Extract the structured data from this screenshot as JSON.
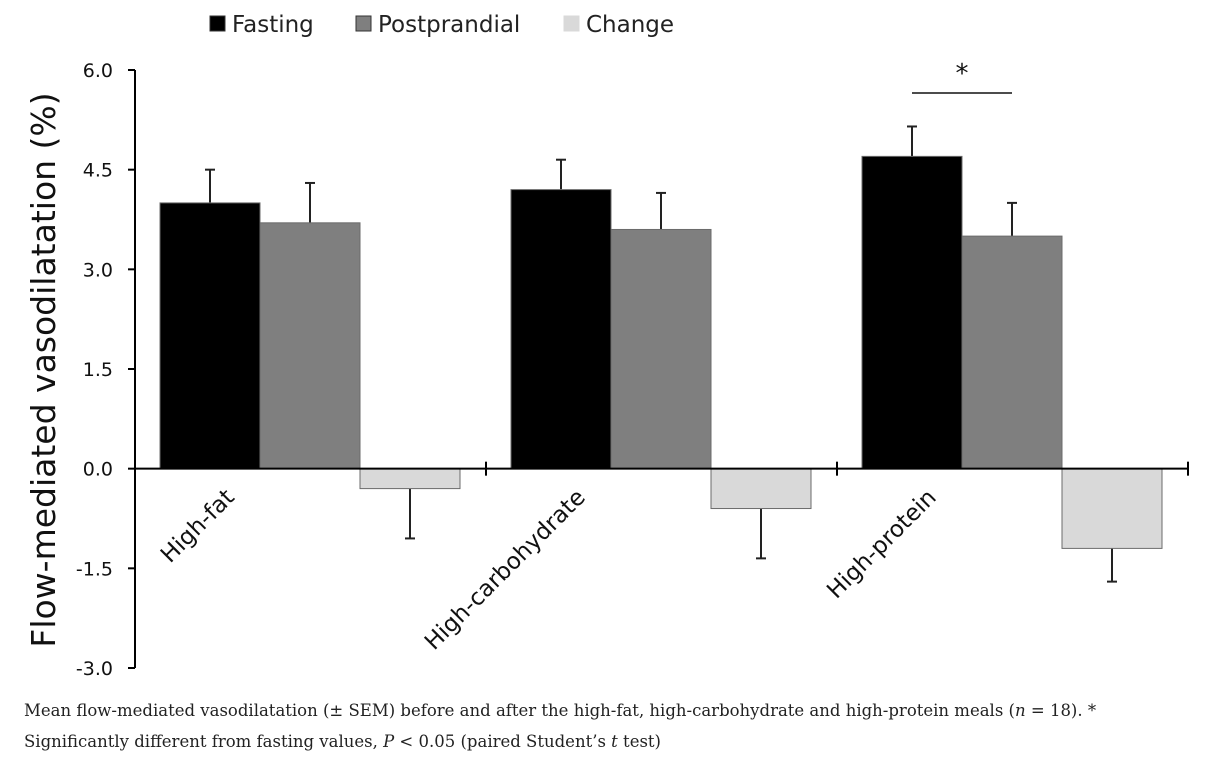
{
  "chart_data": {
    "type": "bar",
    "categories": [
      "High-fat",
      "High-carbohydrate",
      "High-protein"
    ],
    "series": [
      {
        "name": "Fasting",
        "values": [
          4.0,
          4.2,
          4.7
        ],
        "errors": [
          0.5,
          0.45,
          0.45
        ],
        "color": "#000000"
      },
      {
        "name": "Postprandial",
        "values": [
          3.7,
          3.6,
          3.5
        ],
        "errors": [
          0.6,
          0.55,
          0.5
        ],
        "color": "#7f7f7f"
      },
      {
        "name": "Change",
        "values": [
          -0.3,
          -0.6,
          -1.2
        ],
        "errors": [
          0.75,
          0.75,
          0.5
        ],
        "color": "#d9d9d9"
      }
    ],
    "ylabel": "Flow-mediated vasodilatation (%)",
    "xlabel": "",
    "ylim": [
      -3.0,
      6.0
    ],
    "yticks": [
      "6.0",
      "4.5",
      "3.0",
      "1.5",
      "0.0",
      "-1.5",
      "-3.0"
    ],
    "yticks_values": [
      6.0,
      4.5,
      3.0,
      1.5,
      0.0,
      -1.5,
      -3.0
    ],
    "legend_position": "top",
    "grid": false,
    "annotations": [
      {
        "text": "*",
        "category": "High-protein",
        "between": [
          "Fasting",
          "Postprandial"
        ]
      }
    ]
  },
  "caption": {
    "part1": "Mean flow-mediated vasodilatation (± SEM) before and after the high-fat, high-carbohydrate and high-protein meals (",
    "n_var": "n",
    "part2": " = 18). * Significantly different from fasting values, ",
    "p_var": "P",
    "part3": " < 0.05 (paired Student’s ",
    "t_var": "t",
    "part4": " test)"
  }
}
